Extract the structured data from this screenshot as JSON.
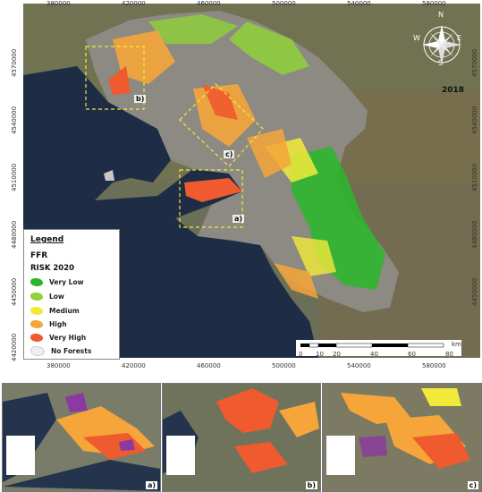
{
  "map": {
    "year": "2018",
    "x_ticks": [
      "380000",
      "420000",
      "460000",
      "500000",
      "540000",
      "580000"
    ],
    "y_ticks": [
      "4570000",
      "4540000",
      "4510000",
      "4480000",
      "4450000",
      "4420000"
    ],
    "scale": {
      "unit": "km",
      "labels": [
        "0",
        "10",
        "20",
        "40",
        "60",
        "80"
      ]
    },
    "compass": {
      "n": "N",
      "s": "S",
      "e": "E",
      "w": "W"
    },
    "box_labels": {
      "a": "a)",
      "b": "b)",
      "c": "c)"
    }
  },
  "legend": {
    "title": "Legend",
    "subtitle": "FFR",
    "heading": "RISK 2020",
    "items": [
      {
        "label": "Very Low",
        "color": "#2db52d"
      },
      {
        "label": "Low",
        "color": "#8fd13a"
      },
      {
        "label": "Medium",
        "color": "#f2ea3a"
      },
      {
        "label": "High",
        "color": "#f5a53a"
      },
      {
        "label": "Very High",
        "color": "#ef5a2e"
      },
      {
        "label": "No Forests",
        "color": "#eeeeee"
      }
    ]
  },
  "insets": [
    {
      "label": "a)"
    },
    {
      "label": "b)"
    },
    {
      "label": "c)"
    }
  ]
}
